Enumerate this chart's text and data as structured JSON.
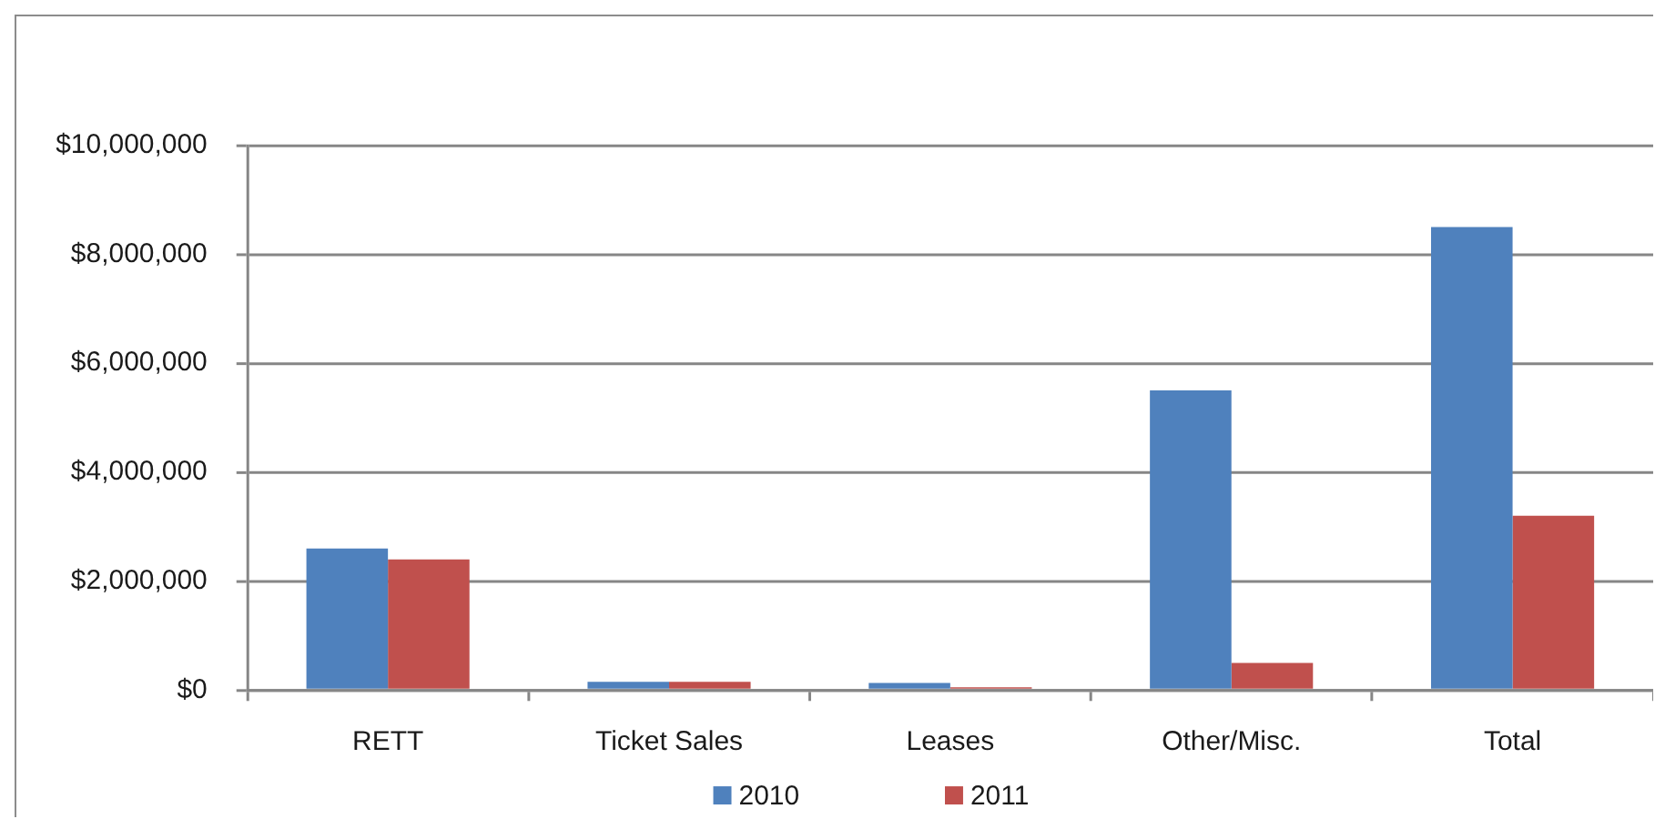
{
  "chart_data": {
    "type": "bar",
    "categories": [
      "RETT",
      "Ticket Sales",
      "Leases",
      "Other/Misc.",
      "Total"
    ],
    "series": [
      {
        "name": "2010",
        "color": "#4f81bd",
        "values": [
          2600000,
          150000,
          130000,
          5500000,
          8500000
        ]
      },
      {
        "name": "2011",
        "color": "#c0504d",
        "values": [
          2400000,
          150000,
          50000,
          500000,
          3200000
        ]
      }
    ],
    "ylim": [
      0,
      10000000
    ],
    "yticks": [
      {
        "value": 0,
        "label": "$0"
      },
      {
        "value": 2000000,
        "label": "$2,000,000"
      },
      {
        "value": 4000000,
        "label": "$4,000,000"
      },
      {
        "value": 6000000,
        "label": "$6,000,000"
      },
      {
        "value": 8000000,
        "label": "$8,000,000"
      },
      {
        "value": 10000000,
        "label": "$10,000,000"
      }
    ],
    "grid": "y",
    "legend": "bottom"
  }
}
